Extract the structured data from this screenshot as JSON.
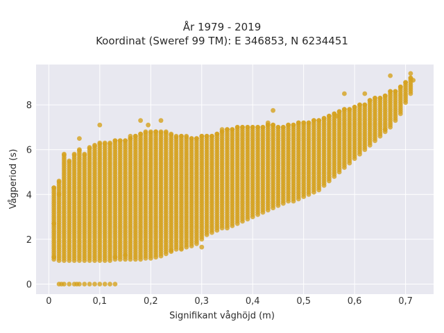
{
  "chart_data": {
    "type": "scatter",
    "title": "År 1979 - 2019",
    "subtitle": "Koordinat (Sweref 99 TM): E 346853, N 6234451",
    "xlabel": "Signifikant våghöjd (m)",
    "ylabel": "Vågperiod (s)",
    "xlim": [
      -0.025,
      0.755
    ],
    "ylim": [
      -0.45,
      9.8
    ],
    "x_ticks": [
      {
        "value": 0.0,
        "label": "0"
      },
      {
        "value": 0.1,
        "label": "0,1"
      },
      {
        "value": 0.2,
        "label": "0,2"
      },
      {
        "value": 0.3,
        "label": "0,3"
      },
      {
        "value": 0.4,
        "label": "0,4"
      },
      {
        "value": 0.5,
        "label": "0,5"
      },
      {
        "value": 0.6,
        "label": "0,6"
      },
      {
        "value": 0.7,
        "label": "0,7"
      }
    ],
    "y_ticks": [
      {
        "value": 0,
        "label": "0"
      },
      {
        "value": 2,
        "label": "2"
      },
      {
        "value": 4,
        "label": "4"
      },
      {
        "value": 6,
        "label": "6"
      },
      {
        "value": 8,
        "label": "8"
      }
    ],
    "grid": true,
    "legend": "none",
    "point_color": "#d4a11e",
    "plot_background": "#e8e8f0",
    "series": [
      {
        "columns": [
          {
            "x": 0.01,
            "ymin": 1.1,
            "ymax": 4.3
          },
          {
            "x": 0.02,
            "ymin": 1.05,
            "ymax": 4.6
          },
          {
            "x": 0.03,
            "ymin": 1.05,
            "ymax": 5.8
          },
          {
            "x": 0.04,
            "ymin": 1.05,
            "ymax": 5.5
          },
          {
            "x": 0.05,
            "ymin": 1.05,
            "ymax": 5.8
          },
          {
            "x": 0.06,
            "ymin": 1.05,
            "ymax": 6.0
          },
          {
            "x": 0.07,
            "ymin": 1.05,
            "ymax": 5.8
          },
          {
            "x": 0.08,
            "ymin": 1.05,
            "ymax": 6.1
          },
          {
            "x": 0.09,
            "ymin": 1.05,
            "ymax": 6.2
          },
          {
            "x": 0.1,
            "ymin": 1.05,
            "ymax": 6.3
          },
          {
            "x": 0.11,
            "ymin": 1.05,
            "ymax": 6.3
          },
          {
            "x": 0.12,
            "ymin": 1.05,
            "ymax": 6.3
          },
          {
            "x": 0.13,
            "ymin": 1.1,
            "ymax": 6.4
          },
          {
            "x": 0.14,
            "ymin": 1.1,
            "ymax": 6.4
          },
          {
            "x": 0.15,
            "ymin": 1.1,
            "ymax": 6.4
          },
          {
            "x": 0.16,
            "ymin": 1.1,
            "ymax": 6.5
          },
          {
            "x": 0.17,
            "ymin": 1.1,
            "ymax": 6.6
          },
          {
            "x": 0.18,
            "ymin": 1.1,
            "ymax": 6.7
          },
          {
            "x": 0.19,
            "ymin": 1.15,
            "ymax": 6.8
          },
          {
            "x": 0.2,
            "ymin": 1.15,
            "ymax": 6.8
          },
          {
            "x": 0.21,
            "ymin": 1.2,
            "ymax": 6.8
          },
          {
            "x": 0.22,
            "ymin": 1.25,
            "ymax": 6.8
          },
          {
            "x": 0.23,
            "ymin": 1.35,
            "ymax": 6.8
          },
          {
            "x": 0.24,
            "ymin": 1.45,
            "ymax": 6.7
          },
          {
            "x": 0.25,
            "ymin": 1.55,
            "ymax": 6.6
          },
          {
            "x": 0.26,
            "ymin": 1.6,
            "ymax": 6.6
          },
          {
            "x": 0.27,
            "ymin": 1.65,
            "ymax": 6.6
          },
          {
            "x": 0.28,
            "ymin": 1.7,
            "ymax": 6.5
          },
          {
            "x": 0.29,
            "ymin": 1.8,
            "ymax": 6.5
          },
          {
            "x": 0.3,
            "ymin": 2.0,
            "ymax": 6.6
          },
          {
            "x": 0.31,
            "ymin": 2.2,
            "ymax": 6.6
          },
          {
            "x": 0.32,
            "ymin": 2.3,
            "ymax": 6.6
          },
          {
            "x": 0.33,
            "ymin": 2.4,
            "ymax": 6.7
          },
          {
            "x": 0.34,
            "ymin": 2.5,
            "ymax": 6.8
          },
          {
            "x": 0.35,
            "ymin": 2.5,
            "ymax": 6.9
          },
          {
            "x": 0.36,
            "ymin": 2.6,
            "ymax": 6.9
          },
          {
            "x": 0.37,
            "ymin": 2.7,
            "ymax": 7.0
          },
          {
            "x": 0.38,
            "ymin": 2.8,
            "ymax": 7.0
          },
          {
            "x": 0.39,
            "ymin": 2.9,
            "ymax": 7.0
          },
          {
            "x": 0.4,
            "ymin": 3.0,
            "ymax": 7.0
          },
          {
            "x": 0.41,
            "ymin": 3.1,
            "ymax": 7.0
          },
          {
            "x": 0.42,
            "ymin": 3.2,
            "ymax": 7.0
          },
          {
            "x": 0.43,
            "ymin": 3.3,
            "ymax": 7.1
          },
          {
            "x": 0.44,
            "ymin": 3.4,
            "ymax": 7.1
          },
          {
            "x": 0.45,
            "ymin": 3.5,
            "ymax": 7.0
          },
          {
            "x": 0.46,
            "ymin": 3.6,
            "ymax": 7.0
          },
          {
            "x": 0.47,
            "ymin": 3.7,
            "ymax": 7.1
          },
          {
            "x": 0.48,
            "ymin": 3.7,
            "ymax": 7.1
          },
          {
            "x": 0.49,
            "ymin": 3.8,
            "ymax": 7.2
          },
          {
            "x": 0.5,
            "ymin": 3.9,
            "ymax": 7.2
          },
          {
            "x": 0.51,
            "ymin": 4.0,
            "ymax": 7.2
          },
          {
            "x": 0.52,
            "ymin": 4.1,
            "ymax": 7.3
          },
          {
            "x": 0.53,
            "ymin": 4.2,
            "ymax": 7.3
          },
          {
            "x": 0.54,
            "ymin": 4.4,
            "ymax": 7.4
          },
          {
            "x": 0.55,
            "ymin": 4.6,
            "ymax": 7.5
          },
          {
            "x": 0.56,
            "ymin": 4.8,
            "ymax": 7.6
          },
          {
            "x": 0.57,
            "ymin": 5.0,
            "ymax": 7.7
          },
          {
            "x": 0.58,
            "ymin": 5.2,
            "ymax": 7.8
          },
          {
            "x": 0.59,
            "ymin": 5.4,
            "ymax": 7.8
          },
          {
            "x": 0.6,
            "ymin": 5.6,
            "ymax": 7.9
          },
          {
            "x": 0.61,
            "ymin": 5.8,
            "ymax": 8.0
          },
          {
            "x": 0.62,
            "ymin": 6.0,
            "ymax": 8.0
          },
          {
            "x": 0.63,
            "ymin": 6.2,
            "ymax": 8.2
          },
          {
            "x": 0.64,
            "ymin": 6.4,
            "ymax": 8.3
          },
          {
            "x": 0.65,
            "ymin": 6.6,
            "ymax": 8.3
          },
          {
            "x": 0.66,
            "ymin": 6.8,
            "ymax": 8.4
          },
          {
            "x": 0.67,
            "ymin": 7.0,
            "ymax": 8.6
          },
          {
            "x": 0.68,
            "ymin": 7.3,
            "ymax": 8.6
          },
          {
            "x": 0.69,
            "ymin": 7.6,
            "ymax": 8.8
          },
          {
            "x": 0.7,
            "ymin": 8.1,
            "ymax": 9.0
          },
          {
            "x": 0.71,
            "ymin": 8.5,
            "ymax": 9.2
          }
        ],
        "zero_points_x": [
          0.02,
          0.025,
          0.03,
          0.04,
          0.05,
          0.055,
          0.06,
          0.07,
          0.08,
          0.09,
          0.1,
          0.11,
          0.12,
          0.13
        ],
        "outliers": [
          [
            0.1,
            7.1
          ],
          [
            0.18,
            7.3
          ],
          [
            0.195,
            7.1
          ],
          [
            0.22,
            7.3
          ],
          [
            0.44,
            7.75
          ],
          [
            0.58,
            8.5
          ],
          [
            0.62,
            8.5
          ],
          [
            0.67,
            9.3
          ],
          [
            0.71,
            9.4
          ],
          [
            0.715,
            9.1
          ],
          [
            0.06,
            6.5
          ],
          [
            0.16,
            6.6
          ],
          [
            0.02,
            4.0
          ],
          [
            0.01,
            2.7
          ],
          [
            0.01,
            1.2
          ],
          [
            0.3,
            1.65
          ],
          [
            0.26,
            1.55
          ],
          [
            0.24,
            1.5
          ],
          [
            0.13,
            1.2
          ],
          [
            0.15,
            1.3
          ],
          [
            0.66,
            6.9
          ],
          [
            0.565,
            7.5
          ],
          [
            0.43,
            7.2
          ],
          [
            0.34,
            6.9
          ]
        ]
      }
    ]
  }
}
